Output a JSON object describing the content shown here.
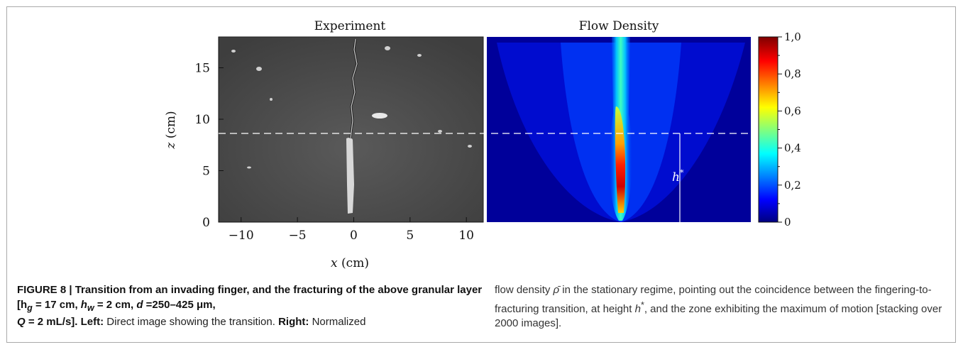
{
  "figure": {
    "panels": {
      "left": {
        "title": "Experiment",
        "xlabel": "x (cm)",
        "ylabel": "z (cm)",
        "xticks": [
          "−10",
          "−5",
          "0",
          "5",
          "10"
        ],
        "yticks": [
          "0",
          "5",
          "10",
          "15"
        ],
        "xlim": [
          -12,
          11.5
        ],
        "ylim": [
          0,
          18
        ]
      },
      "right": {
        "title": "Flow Density",
        "annotation": "h",
        "annotation_sup": "*"
      }
    },
    "colorbar": {
      "ticks": [
        "0",
        "0,2",
        "0,4",
        "0,6",
        "0,8",
        "1,0"
      ],
      "range": [
        0,
        1
      ],
      "colormap": [
        "#00007f",
        "#0000ff",
        "#00ffff",
        "#ffff00",
        "#ff0000",
        "#7f0000"
      ]
    },
    "dashed_line_z": 8.5
  },
  "caption": {
    "number": "FIGURE 8 |",
    "title": "Transition from an invading finger, and the fracturing of the above granular layer [h",
    "params": {
      "hg_sub": "g",
      "hg_val": " = 17 cm, ",
      "hw": "h",
      "hw_sub": "w",
      "hw_val": " = 2 cm, ",
      "d": "d",
      "d_val": " =250–425 μm,",
      "Q": "Q",
      "Q_val": " = 2 mL/s]. "
    },
    "left_label": "Left:",
    "left_text": " Direct image showing the transition. ",
    "right_label": "Right:",
    "right_text": " Normalized",
    "continuation_1": "flow density ",
    "rho": "ρ̄",
    "continuation_2": " in the stationary regime, pointing out the coincidence between the fingering-to-fracturing transition, at height ",
    "hstar": "h",
    "hstar_sup": "*",
    "continuation_3": ", and the zone exhibiting the maximum of motion [stacking over 2000 images]."
  }
}
